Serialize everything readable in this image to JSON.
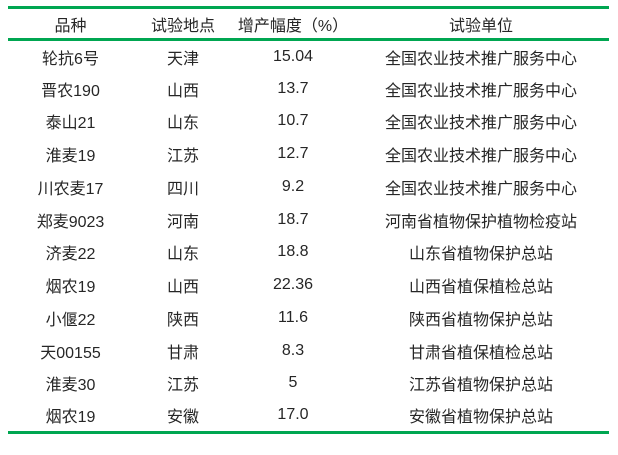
{
  "table": {
    "columns": [
      {
        "key": "variety",
        "label": "品种"
      },
      {
        "key": "location",
        "label": "试验地点"
      },
      {
        "key": "increase",
        "label": "增产幅度（%）"
      },
      {
        "key": "unit",
        "label": "试验单位"
      }
    ],
    "rows": [
      {
        "variety": "轮抗6号",
        "location": "天津",
        "increase": "15.04",
        "unit": "全国农业技术推广服务中心"
      },
      {
        "variety": "晋农190",
        "location": "山西",
        "increase": "13.7",
        "unit": "全国农业技术推广服务中心"
      },
      {
        "variety": "泰山21",
        "location": "山东",
        "increase": "10.7",
        "unit": "全国农业技术推广服务中心"
      },
      {
        "variety": "淮麦19",
        "location": "江苏",
        "increase": "12.7",
        "unit": "全国农业技术推广服务中心"
      },
      {
        "variety": "川农麦17",
        "location": "四川",
        "increase": "9.2",
        "unit": "全国农业技术推广服务中心"
      },
      {
        "variety": "郑麦9023",
        "location": "河南",
        "increase": "18.7",
        "unit": "河南省植物保护植物检疫站"
      },
      {
        "variety": "济麦22",
        "location": "山东",
        "increase": "18.8",
        "unit": "山东省植物保护总站"
      },
      {
        "variety": "烟农19",
        "location": "山西",
        "increase": "22.36",
        "unit": "山西省植保植检总站"
      },
      {
        "variety": "小偃22",
        "location": "陕西",
        "increase": "11.6",
        "unit": "陕西省植物保护总站"
      },
      {
        "variety": "天00155",
        "location": "甘肃",
        "increase": "8.3",
        "unit": "甘肃省植保植检总站"
      },
      {
        "variety": "淮麦30",
        "location": "江苏",
        "increase": "5",
        "unit": "江苏省植物保护总站"
      },
      {
        "variety": "烟农19",
        "location": "安徽",
        "increase": "17.0",
        "unit": "安徽省植物保护总站"
      }
    ]
  },
  "colors": {
    "rule_green": "#00a651",
    "text_color": "#262626"
  }
}
